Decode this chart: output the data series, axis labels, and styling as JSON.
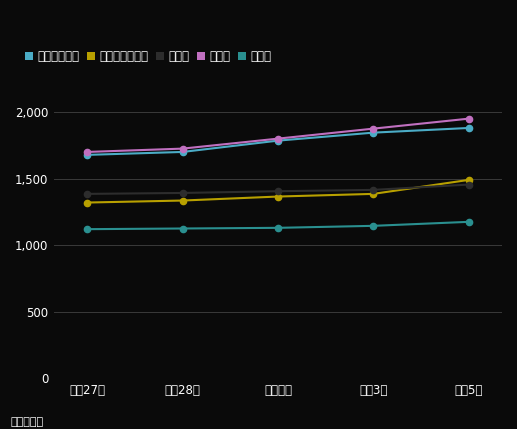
{
  "x_labels": [
    "平成27年",
    "平成28年",
    "令和元年",
    "令和3年",
    "令和5年"
  ],
  "x_positions": [
    0,
    1,
    2,
    3,
    4
  ],
  "series": [
    {
      "name": "相模原市南区",
      "values": [
        1678,
        1700,
        1785,
        1845,
        1880
      ],
      "color": "#4bacc6",
      "marker": "o"
    },
    {
      "name": "相模原市中央区",
      "values": [
        1320,
        1335,
        1365,
        1385,
        1490
      ],
      "color": "#b8a000",
      "marker": "o"
    },
    {
      "name": "座間市",
      "values": [
        1385,
        1392,
        1405,
        1415,
        1455
      ],
      "color": "#2d2d2d",
      "marker": "o"
    },
    {
      "name": "大和市",
      "values": [
        1700,
        1725,
        1800,
        1875,
        1950
      ],
      "color": "#c070c0",
      "marker": "o"
    },
    {
      "name": "厚木市",
      "values": [
        1120,
        1125,
        1130,
        1145,
        1175
      ],
      "color": "#2a9090",
      "marker": "o"
    }
  ],
  "ylim": [
    0,
    2200
  ],
  "yticks": [
    0,
    500,
    1000,
    1500,
    2000
  ],
  "ytick_labels": [
    "0",
    "500",
    "1,000",
    "1,500",
    "2,000"
  ],
  "background_color": "#0a0a0a",
  "text_color": "#ffffff",
  "grid_color": "#3a3a3a",
  "unit_label": "単位：百円",
  "legend_fontsize": 8.5,
  "tick_fontsize": 8.5,
  "unit_fontsize": 8,
  "line_width": 1.5,
  "marker_size": 4.5
}
